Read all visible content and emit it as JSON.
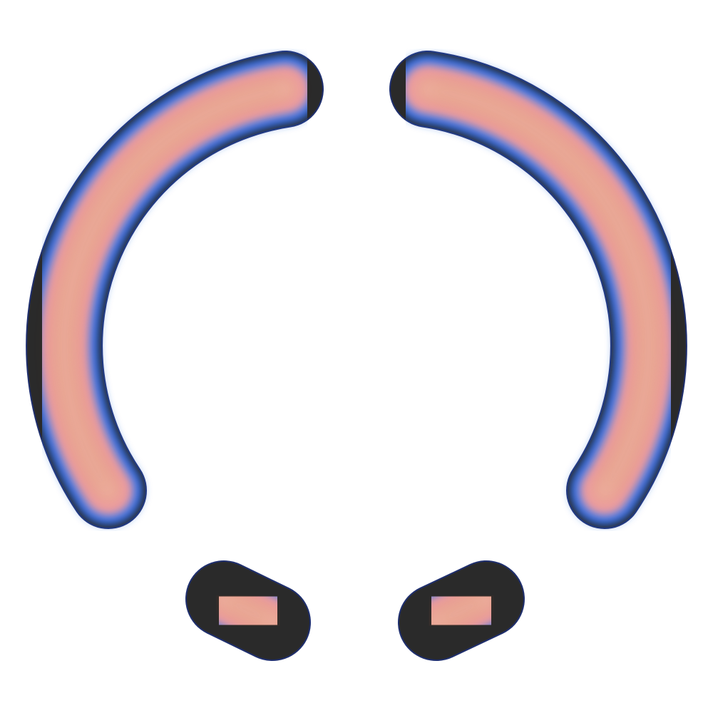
{
  "icon": {
    "name": "segmented-ring-loader-icon",
    "segments": [
      {
        "name": "left-arc-segment"
      },
      {
        "name": "right-arc-segment"
      },
      {
        "name": "bottom-left-pill-segment"
      },
      {
        "name": "bottom-right-pill-segment"
      }
    ],
    "colors": {
      "outline": "#1f2f6e",
      "edge_dark": "#2a2a2a",
      "edge_blue": "#2f66d9",
      "mid_blue": "#5a86e8",
      "pink": "#ee9aa9",
      "salmon": "#e9a08d",
      "copper": "#b8542a",
      "highlight": "#f6c2b4",
      "background": "#ffffff"
    }
  }
}
